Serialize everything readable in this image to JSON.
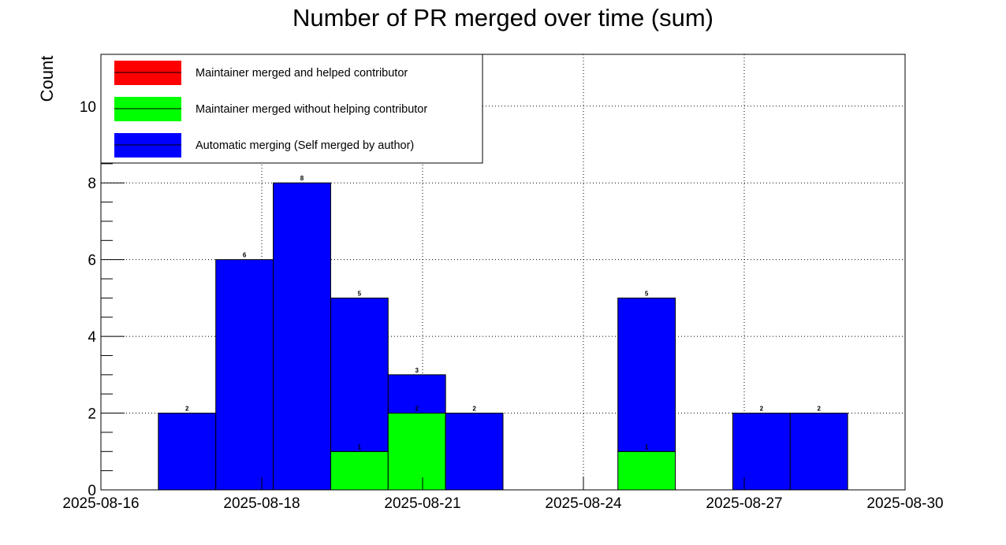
{
  "chart_data": {
    "type": "bar",
    "title": "Number of PR merged over time (sum)",
    "ylabel": "Count",
    "xlabel": "",
    "ylim": [
      0,
      11.35
    ],
    "x_tick_labels": [
      "2025-08-16",
      "2025-08-18",
      "2025-08-21",
      "2025-08-24",
      "2025-08-27",
      "2025-08-30"
    ],
    "y_ticks": [
      0,
      2,
      4,
      6,
      8,
      10
    ],
    "grid": true,
    "legend_position": "top-left",
    "bins": [
      "b1",
      "b2",
      "b3",
      "b4",
      "b5",
      "b6",
      "b7",
      "b8",
      "b9",
      "b10",
      "b11",
      "b12",
      "b13",
      "b14"
    ],
    "totals": [
      0,
      2,
      6,
      8,
      5,
      3,
      2,
      0,
      0,
      5,
      0,
      2,
      2,
      0
    ],
    "total_labels": [
      "",
      "2",
      "6",
      "8",
      "5",
      "3",
      "2",
      "",
      "",
      "5",
      "",
      "2",
      "2",
      ""
    ],
    "series": [
      {
        "name": "Maintainer merged and helped contributor",
        "color": "#ff0000",
        "values": [
          0,
          0,
          0,
          0,
          0,
          0,
          0,
          0,
          0,
          0,
          0,
          0,
          0,
          0
        ],
        "labels": [
          "",
          "",
          "",
          "",
          "",
          "",
          "",
          "",
          "",
          "",
          "",
          "",
          "",
          ""
        ]
      },
      {
        "name": "Maintainer merged without helping contributor",
        "color": "#00ff00",
        "values": [
          0,
          0,
          0,
          0,
          1,
          2,
          0,
          0,
          0,
          1,
          0,
          0,
          0,
          0
        ],
        "labels": [
          "",
          "",
          "",
          "",
          "1",
          "2",
          "",
          "",
          "",
          "1",
          "",
          "",
          "",
          ""
        ]
      },
      {
        "name": "Automatic merging (Self merged by author)",
        "color": "#0000ff",
        "values": [
          0,
          2,
          6,
          8,
          4,
          1,
          2,
          0,
          0,
          4,
          0,
          2,
          2,
          0
        ],
        "labels": [
          "",
          "",
          "",
          "",
          "",
          "",
          "",
          "",
          "",
          "",
          "",
          "",
          "",
          ""
        ]
      }
    ]
  }
}
